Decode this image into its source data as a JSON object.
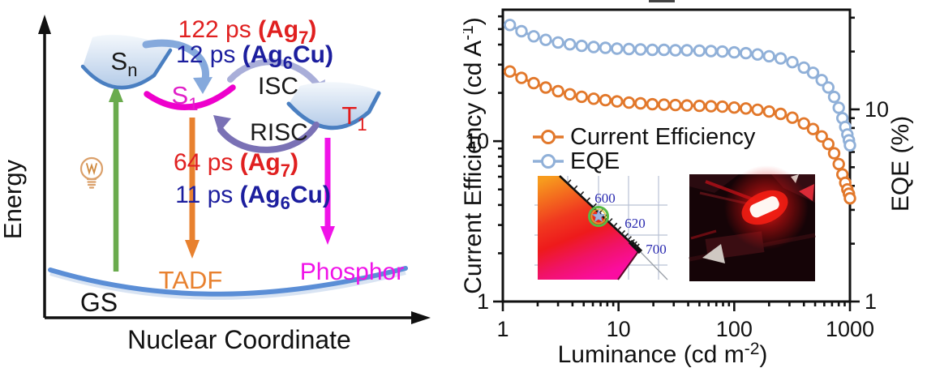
{
  "diagram": {
    "y_axis_label": "Energy",
    "x_axis_label": "Nuclear Coordinate",
    "gs_label": "GS",
    "sn": {
      "base": "S",
      "sub": "n"
    },
    "s1": {
      "base": "S",
      "sub": "1"
    },
    "t1": {
      "base": "T",
      "sub": "1"
    },
    "isc_label": "ISC",
    "risc_label": "RISC",
    "tadf_label": "TADF",
    "phosphor_label": "Phosphor",
    "ann_isc_ag7": {
      "t1": "122 ps ",
      "t2": "(Ag",
      "sub": "7",
      "t3": ")"
    },
    "ann_isc_ag6cu": {
      "t1": "12 ps ",
      "t2": "(Ag",
      "sub": "6",
      "t3": "Cu)"
    },
    "ann_risc_ag7": {
      "t1": "64 ps ",
      "t2": "(Ag",
      "sub": "7",
      "t3": ")"
    },
    "ann_risc_ag6cu": {
      "t1": "11 ps ",
      "t2": "(Ag",
      "sub": "6",
      "t3": "Cu)"
    },
    "colors": {
      "red_annotation": "#e02020",
      "blue_annotation": "#1c1e9e",
      "excitation_arrow": "#6aab4d",
      "tadf_arrow": "#e8812f",
      "phosphor_magenta": "#f013e8",
      "s1_magenta": "#ee00cc",
      "isc_arrow": "#a9aed9",
      "risc_arrow": "#7a71b5",
      "sn_to_s1_arrow": "#85a9dc",
      "gs_curve": "#5b8ed6",
      "bulb": "#dba06a",
      "t1_red": "#e31b1b"
    }
  },
  "chart": {
    "left_axis": {
      "pre": "Current Efficiency (cd A",
      "sup": "-1",
      "post": ")"
    },
    "right_axis_label": "EQE (%)",
    "x_axis": {
      "pre": "Luminance (cd m",
      "sup": "-2",
      "post": ")"
    }
  },
  "chart_data": {
    "type": "line-scatter",
    "x_label": "Luminance (cd m^-2)",
    "y_left_label": "Current Efficiency (cd A^-1)",
    "y_right_label": "EQE (%)",
    "x_scale": "log",
    "y_scale": "log",
    "xlim": [
      1,
      1000
    ],
    "left_ylim": [
      1,
      66
    ],
    "right_ylim": [
      1,
      33
    ],
    "x_ticks": [
      1,
      10,
      100,
      1000
    ],
    "left_y_ticks": [
      1,
      10
    ],
    "right_y_ticks": [
      1,
      10
    ],
    "grid": false,
    "legend_position": "center-left",
    "x": [
      1.15,
      1.45,
      1.85,
      2.35,
      3.0,
      3.8,
      4.8,
      6.1,
      7.7,
      9.7,
      12.3,
      15.5,
      19.6,
      24.7,
      31,
      39,
      50,
      63,
      79,
      100,
      126,
      159,
      200,
      252,
      318,
      400,
      480,
      570,
      650,
      730,
      800,
      860,
      910,
      950,
      980,
      1000
    ],
    "series": [
      {
        "name": "Current Efficiency",
        "axis": "left",
        "color": "#e2782b",
        "values": [
          27.2,
          24.8,
          23.0,
          21.6,
          20.5,
          19.6,
          18.9,
          18.4,
          18.0,
          17.7,
          17.4,
          17.2,
          17.0,
          16.9,
          16.8,
          16.7,
          16.6,
          16.5,
          16.4,
          16.2,
          16.0,
          15.7,
          15.3,
          14.8,
          14.0,
          12.9,
          11.9,
          10.7,
          9.6,
          8.4,
          7.2,
          6.2,
          5.5,
          5.0,
          4.7,
          4.4
        ]
      },
      {
        "name": "EQE",
        "axis": "right",
        "color": "#90b0d8",
        "values": [
          27.5,
          25.5,
          24.0,
          23.0,
          22.3,
          21.8,
          21.4,
          21.1,
          20.9,
          20.7,
          20.6,
          20.5,
          20.4,
          20.4,
          20.3,
          20.3,
          20.2,
          20.1,
          20.0,
          19.8,
          19.6,
          19.3,
          18.9,
          18.4,
          17.6,
          16.5,
          15.5,
          14.2,
          13.0,
          11.6,
          10.2,
          9.0,
          8.1,
          7.4,
          6.9,
          6.5
        ]
      }
    ]
  },
  "cie_inset": {
    "wavelength_labels": [
      "600",
      "620",
      "700"
    ],
    "label_color": "#2a2ab0",
    "marker": "star-in-green-circle"
  }
}
